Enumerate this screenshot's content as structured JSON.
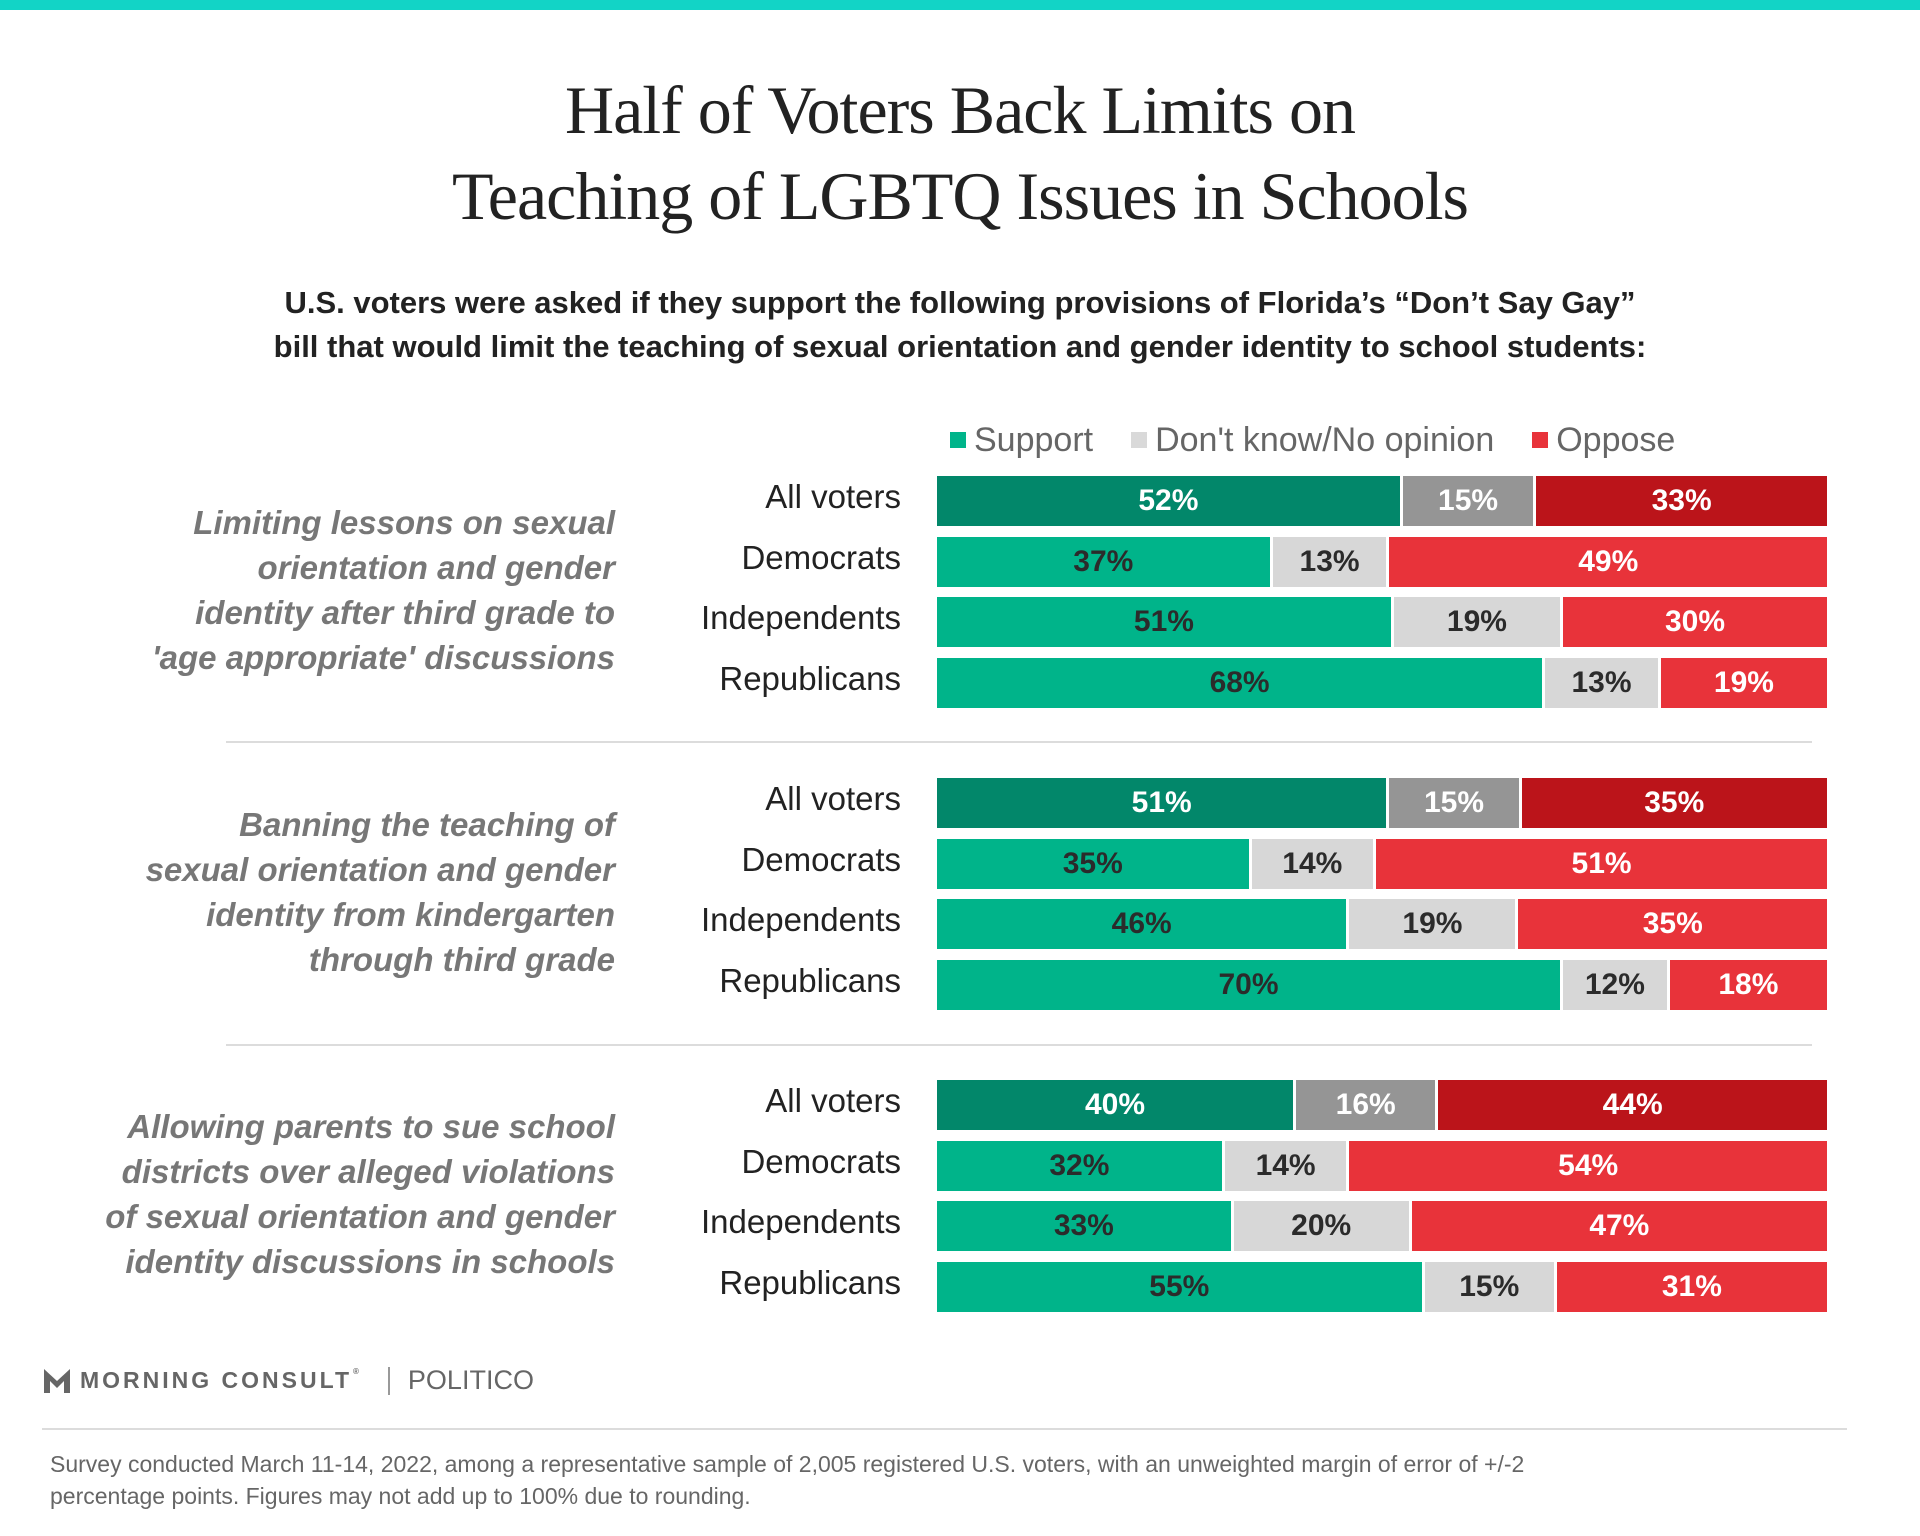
{
  "title_lines": [
    "Half of Voters Back Limits on",
    "Teaching of LGBTQ Issues in Schools"
  ],
  "subtitle_lines": [
    "U.S. voters were asked if they support the following provisions of Florida’s “Don’t Say Gay”",
    "bill that would limit the teaching of sexual orientation and gender identity to school students:"
  ],
  "legend": [
    {
      "label": "Support",
      "color": "#00b48a"
    },
    {
      "label": "Don't know/No opinion",
      "color": "#d9d9d9"
    },
    {
      "label": "Oppose",
      "color": "#e8333a"
    }
  ],
  "colors": {
    "support_all": "#02876a",
    "neutral_all": "#959595",
    "oppose_all": "#bb141a",
    "support": "#00b48a",
    "neutral": "#d7d7d7",
    "oppose": "#e8333a",
    "top_bar": "#12d4c6"
  },
  "chart_data": {
    "type": "bar",
    "orientation": "horizontal-stacked-100",
    "title": "Half of Voters Back Limits on Teaching of LGBTQ Issues in Schools",
    "series_names": [
      "Support",
      "Don't know/No opinion",
      "Oppose"
    ],
    "xlim": [
      0,
      100
    ],
    "groups": [
      {
        "question_lines": [
          "Limiting lessons on sexual",
          "orientation and gender",
          "identity after third grade to",
          "'age appropriate' discussions"
        ],
        "rows": [
          {
            "label": "All voters",
            "values": [
              52,
              15,
              33
            ]
          },
          {
            "label": "Democrats",
            "values": [
              37,
              13,
              49
            ]
          },
          {
            "label": "Independents",
            "values": [
              51,
              19,
              30
            ]
          },
          {
            "label": "Republicans",
            "values": [
              68,
              13,
              19
            ]
          }
        ]
      },
      {
        "question_lines": [
          "Banning the teaching of",
          "sexual orientation and gender",
          "identity from kindergarten",
          "through third grade"
        ],
        "rows": [
          {
            "label": "All voters",
            "values": [
              51,
              15,
              35
            ]
          },
          {
            "label": "Democrats",
            "values": [
              35,
              14,
              51
            ]
          },
          {
            "label": "Independents",
            "values": [
              46,
              19,
              35
            ]
          },
          {
            "label": "Republicans",
            "values": [
              70,
              12,
              18
            ]
          }
        ]
      },
      {
        "question_lines": [
          "Allowing parents to sue school",
          "districts over alleged violations",
          "of sexual orientation and gender",
          "identity discussions in schools"
        ],
        "rows": [
          {
            "label": "All voters",
            "values": [
              40,
              16,
              44
            ]
          },
          {
            "label": "Democrats",
            "values": [
              32,
              14,
              54
            ]
          },
          {
            "label": "Independents",
            "values": [
              33,
              20,
              47
            ]
          },
          {
            "label": "Republicans",
            "values": [
              55,
              15,
              31
            ]
          }
        ]
      }
    ]
  },
  "branding": {
    "morning_consult": "MORNING CONSULT",
    "registered": "®",
    "politico": "POLITICO"
  },
  "footnote_lines": [
    "Survey conducted March 11-14, 2022, among a representative sample of 2,005 registered U.S. voters, with an unweighted margin of error of +/-2",
    "percentage points. Figures may not add up to 100% due to rounding."
  ]
}
